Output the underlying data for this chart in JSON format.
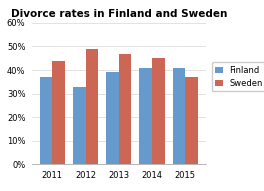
{
  "title": "Divorce rates in Finland and Sweden",
  "years": [
    "2011",
    "2012",
    "2013",
    "2014",
    "2015"
  ],
  "finland": [
    0.37,
    0.33,
    0.39,
    0.41,
    0.41
  ],
  "sweden": [
    0.44,
    0.49,
    0.47,
    0.45,
    0.37
  ],
  "finland_color": "#6699CC",
  "sweden_color": "#CC6655",
  "ylim": [
    0,
    0.6
  ],
  "yticks": [
    0.0,
    0.1,
    0.2,
    0.3,
    0.4,
    0.5,
    0.6
  ],
  "legend_labels": [
    "Finland",
    "Sweden"
  ],
  "plot_bg_color": "#FFFFFF",
  "fig_bg_color": "#FFFFFF",
  "title_fontsize": 7.5,
  "tick_fontsize": 6.0,
  "legend_fontsize": 6.0,
  "bar_width": 0.38
}
